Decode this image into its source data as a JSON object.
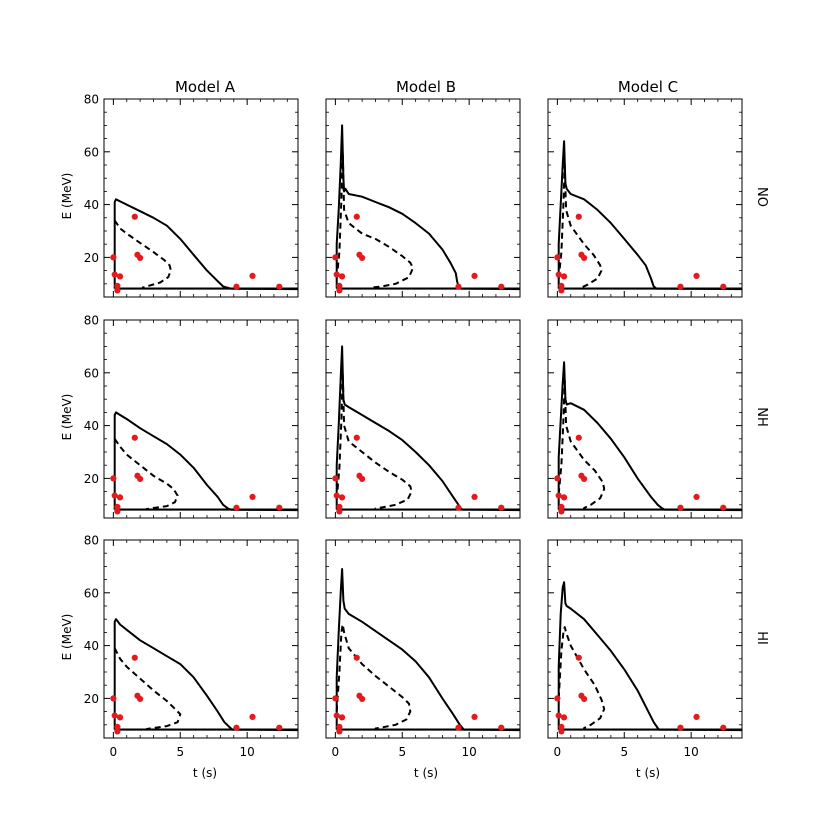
{
  "figure": {
    "column_titles": [
      "Model A",
      "Model B",
      "Model C"
    ],
    "row_labels": [
      "NO",
      "NH",
      "HI"
    ],
    "xlabel": "t (s)",
    "ylabel": "E (MeV)"
  },
  "chart_data": {
    "type": "line",
    "layout": "3x3 grid of panels (rows share labels, columns share models)",
    "xlim": [
      -0.7,
      13.8
    ],
    "ylim": [
      5,
      80
    ],
    "xticks": [
      0,
      5,
      10
    ],
    "yticks": [
      20,
      40,
      60,
      80
    ],
    "grid": false,
    "colors": {
      "curves": "#000000",
      "events": "#e41a1c"
    },
    "series_styles": {
      "outer": "solid",
      "inner": "dashed",
      "baseline": "solid"
    },
    "events": [
      {
        "t": 0.0,
        "E": 20.0
      },
      {
        "t": 0.1,
        "E": 13.5
      },
      {
        "t": 0.3,
        "E": 7.5
      },
      {
        "t": 0.3,
        "E": 9.2
      },
      {
        "t": 0.5,
        "E": 12.8
      },
      {
        "t": 1.6,
        "E": 35.4
      },
      {
        "t": 1.8,
        "E": 21.0
      },
      {
        "t": 2.0,
        "E": 19.8
      },
      {
        "t": 9.2,
        "E": 8.9
      },
      {
        "t": 10.4,
        "E": 13.0
      },
      {
        "t": 12.4,
        "E": 8.9
      }
    ],
    "panels": [
      {
        "model": "Model A",
        "row": "NO",
        "baseline_E": 8.2,
        "outer": {
          "t": [
            0.1,
            0.1,
            0.2,
            0.5,
            1,
            2,
            3,
            4,
            5,
            6,
            7,
            7.8,
            8.2,
            8.7,
            8.8,
            9.0,
            13.8
          ],
          "E": [
            8.2,
            41,
            42,
            41.2,
            40,
            37.5,
            35,
            32,
            27,
            21,
            15,
            11,
            9,
            8.3,
            8.2,
            8.1,
            8.0
          ]
        },
        "inner": {
          "t": [
            0.1,
            0.5,
            1,
            2,
            3,
            3.8,
            4.2,
            4.3,
            4.1,
            3.5,
            2.5,
            2.2,
            2.2
          ],
          "E": [
            34,
            31,
            29,
            25.5,
            22,
            19,
            17,
            15,
            12.5,
            10.5,
            9.0,
            8.6,
            8.2
          ]
        }
      },
      {
        "model": "Model B",
        "row": "NO",
        "baseline_E": 8.2,
        "outer": {
          "t": [
            0.1,
            0.1,
            0.25,
            0.4,
            0.5,
            0.6,
            0.65,
            0.75,
            1,
            2,
            3,
            4,
            5,
            6,
            7,
            8,
            8.6,
            9.0,
            9.1,
            9.2,
            9.4,
            13.8
          ],
          "E": [
            8.2,
            25,
            38,
            55,
            70,
            50,
            45,
            46,
            44,
            43,
            41,
            39,
            36.5,
            33,
            29,
            23,
            18,
            14,
            11,
            9,
            8.2,
            8.0
          ]
        },
        "inner": {
          "t": [
            0.1,
            0.3,
            0.45,
            0.55,
            0.65,
            1,
            2,
            3,
            4,
            5,
            5.6,
            5.8,
            5.5,
            4.5,
            3.5,
            2.8,
            2.8
          ],
          "E": [
            12,
            22,
            42,
            60,
            38,
            33,
            29,
            27,
            24,
            20.5,
            18,
            16,
            12.5,
            10,
            9.0,
            8.6,
            8.2
          ]
        }
      },
      {
        "model": "Model C",
        "row": "NO",
        "baseline_E": 8.2,
        "outer": {
          "t": [
            0.1,
            0.1,
            0.25,
            0.4,
            0.5,
            0.6,
            0.7,
            1,
            2,
            3,
            4,
            5,
            6,
            6.6,
            7.0,
            7.2,
            7.4,
            13.8
          ],
          "E": [
            8.2,
            25,
            40,
            55,
            64,
            48,
            46,
            44,
            42,
            38,
            33,
            27,
            21,
            17,
            12,
            9,
            8.2,
            8.0
          ]
        },
        "inner": {
          "t": [
            0.1,
            0.3,
            0.45,
            0.55,
            0.65,
            1,
            2,
            2.7,
            3.2,
            3.3,
            3.0,
            2.2,
            1.8,
            1.8
          ],
          "E": [
            12,
            22,
            40,
            55,
            38,
            32,
            25,
            21,
            17,
            15,
            12,
            9.5,
            8.6,
            8.2
          ]
        }
      },
      {
        "model": "Model A",
        "row": "NH",
        "baseline_E": 8.2,
        "outer": {
          "t": [
            0.1,
            0.1,
            0.2,
            0.5,
            1,
            2,
            3,
            4,
            5,
            6,
            7,
            7.8,
            8.2,
            8.6,
            8.8,
            9.0,
            13.8
          ],
          "E": [
            8.2,
            44,
            45,
            44,
            42.5,
            39,
            36,
            33,
            29,
            24,
            17.5,
            13,
            10,
            8.5,
            8.2,
            8.1,
            8.0
          ]
        },
        "inner": {
          "t": [
            0.1,
            0.5,
            1,
            2,
            3,
            4,
            4.5,
            4.8,
            4.6,
            4.0,
            3.0,
            2.5,
            2.5
          ],
          "E": [
            35,
            32,
            29,
            25,
            21,
            18,
            16,
            13.5,
            11,
            9.5,
            8.8,
            8.4,
            8.2
          ]
        }
      },
      {
        "model": "Model B",
        "row": "NH",
        "baseline_E": 8.2,
        "outer": {
          "t": [
            0.1,
            0.1,
            0.25,
            0.4,
            0.5,
            0.6,
            0.7,
            1,
            2,
            3,
            4,
            5,
            6,
            7,
            8,
            8.8,
            9.2,
            9.3,
            9.5,
            13.8
          ],
          "E": [
            8.2,
            25,
            40,
            58,
            70,
            50,
            48,
            47,
            44,
            41,
            38,
            34.5,
            30,
            25,
            19,
            13,
            10,
            9,
            8.2,
            8.0
          ]
        },
        "inner": {
          "t": [
            0.1,
            0.3,
            0.45,
            0.55,
            0.65,
            1,
            2,
            3,
            4,
            5,
            5.6,
            5.7,
            5.4,
            4.5,
            3.5,
            3.0,
            3.0
          ],
          "E": [
            12,
            24,
            42,
            60,
            40,
            34,
            30,
            26,
            22.5,
            19.5,
            17,
            15,
            12,
            10,
            9,
            8.6,
            8.2
          ]
        }
      },
      {
        "model": "Model C",
        "row": "NH",
        "baseline_E": 8.2,
        "outer": {
          "t": [
            0.1,
            0.1,
            0.25,
            0.4,
            0.5,
            0.6,
            0.7,
            1,
            2,
            3,
            4,
            5,
            6,
            7,
            7.5,
            7.8,
            8.0,
            13.8
          ],
          "E": [
            8.2,
            28,
            42,
            56,
            64,
            50,
            48,
            48.5,
            46,
            41,
            35,
            28,
            20,
            13,
            10,
            8.8,
            8.2,
            8.0
          ]
        },
        "inner": {
          "t": [
            0.1,
            0.3,
            0.45,
            0.55,
            0.65,
            1,
            2,
            2.8,
            3.4,
            3.5,
            3.2,
            2.5,
            2.0,
            2.0
          ],
          "E": [
            14,
            25,
            42,
            57,
            40,
            34,
            27,
            23,
            18.5,
            16,
            12.5,
            10,
            8.8,
            8.2
          ]
        }
      },
      {
        "model": "Model A",
        "row": "HI",
        "baseline_E": 8.2,
        "outer": {
          "t": [
            0.1,
            0.1,
            0.2,
            0.5,
            1,
            2,
            3,
            4,
            5,
            6,
            7,
            7.8,
            8.3,
            8.7,
            8.9,
            13.8
          ],
          "E": [
            8.2,
            49,
            50,
            48,
            46,
            42,
            39,
            36,
            33,
            28,
            21,
            15,
            11,
            9,
            8.2,
            8.0
          ]
        },
        "inner": {
          "t": [
            0.1,
            0.5,
            1,
            2,
            3,
            4,
            4.5,
            5.0,
            4.8,
            4.0,
            3.0,
            2.5,
            2.5
          ],
          "E": [
            39,
            35,
            32,
            27.5,
            23,
            19,
            16.5,
            14,
            11,
            9.5,
            8.8,
            8.4,
            8.2
          ]
        }
      },
      {
        "model": "Model B",
        "row": "HI",
        "baseline_E": 8.2,
        "outer": {
          "t": [
            0.1,
            0.1,
            0.25,
            0.4,
            0.5,
            0.6,
            0.7,
            1,
            2,
            3,
            4,
            5,
            6,
            7,
            8,
            8.8,
            9.3,
            9.5,
            9.6,
            13.8
          ],
          "E": [
            8.2,
            28,
            45,
            60,
            69,
            57,
            54,
            52,
            49,
            45.5,
            42,
            38.5,
            34,
            28,
            20,
            14,
            10,
            8.8,
            8.2,
            8.0
          ]
        },
        "inner": {
          "t": [
            0.1,
            0.3,
            0.45,
            0.55,
            0.65,
            1,
            2,
            3,
            4,
            5,
            5.5,
            5.6,
            5.3,
            4.5,
            3.5,
            3.0,
            3.0
          ],
          "E": [
            15,
            30,
            45,
            48,
            45,
            39,
            33,
            28.5,
            24.5,
            20.5,
            18,
            15,
            12,
            10,
            9,
            8.6,
            8.2
          ]
        }
      },
      {
        "model": "Model C",
        "row": "HI",
        "baseline_E": 8.2,
        "outer": {
          "t": [
            0.1,
            0.1,
            0.25,
            0.4,
            0.5,
            0.6,
            0.7,
            1,
            2,
            3,
            4,
            5,
            6,
            6.8,
            7.2,
            7.5,
            7.6,
            13.8
          ],
          "E": [
            8.2,
            32,
            52,
            62,
            64,
            56,
            55,
            54,
            50,
            44,
            38,
            31,
            23,
            15,
            11,
            8.8,
            8.2,
            8.0
          ]
        },
        "inner": {
          "t": [
            0.1,
            0.3,
            0.45,
            0.55,
            0.65,
            1,
            2,
            2.8,
            3.3,
            3.5,
            3.2,
            2.5,
            2.0,
            2.0
          ],
          "E": [
            20,
            38,
            45,
            47,
            45,
            40,
            31,
            25,
            19.5,
            16,
            12.5,
            10,
            8.8,
            8.2
          ]
        }
      }
    ]
  }
}
